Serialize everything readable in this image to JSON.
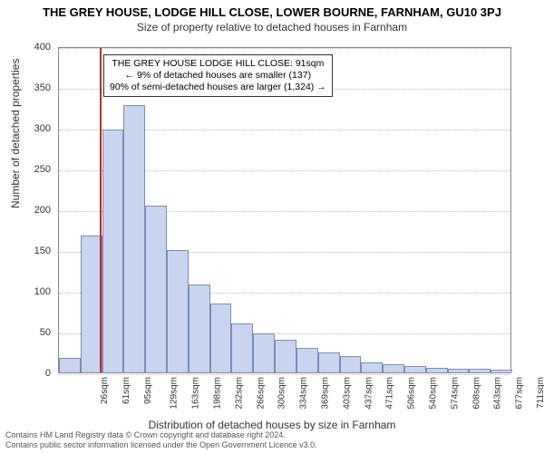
{
  "title_main": "THE GREY HOUSE, LODGE HILL CLOSE, LOWER BOURNE, FARNHAM, GU10 3PJ",
  "title_sub": "Size of property relative to detached houses in Farnham",
  "ylabel": "Number of detached properties",
  "xlabel": "Distribution of detached houses by size in Farnham",
  "chart": {
    "type": "histogram",
    "ylim": [
      0,
      400
    ],
    "ytick_step": 50,
    "yticks": [
      0,
      50,
      100,
      150,
      200,
      250,
      300,
      350,
      400
    ],
    "categories": [
      "26sqm",
      "61sqm",
      "95sqm",
      "129sqm",
      "163sqm",
      "198sqm",
      "232sqm",
      "266sqm",
      "300sqm",
      "334sqm",
      "369sqm",
      "403sqm",
      "437sqm",
      "471sqm",
      "506sqm",
      "540sqm",
      "574sqm",
      "608sqm",
      "643sqm",
      "677sqm",
      "711sqm"
    ],
    "values": [
      18,
      168,
      298,
      328,
      205,
      150,
      108,
      85,
      60,
      48,
      40,
      30,
      25,
      20,
      12,
      10,
      8,
      6,
      5,
      4,
      3
    ],
    "bar_fill": "#c9d5ef",
    "bar_stroke": "#7a8db8",
    "grid_color": "#bbbbbb",
    "axis_color": "#888888",
    "background_color": "#ffffff",
    "bar_gap": 0,
    "label_fontsize": 11,
    "tick_fontsize": 10
  },
  "marker": {
    "position_index": 1.9,
    "color": "#c62828"
  },
  "annotation": {
    "line1": "THE GREY HOUSE LODGE HILL CLOSE: 91sqm",
    "line2": "← 9% of detached houses are smaller (137)",
    "line3": "90% of semi-detached houses are larger (1,324) →"
  },
  "footer": {
    "line1": "Contains HM Land Registry data © Crown copyright and database right 2024.",
    "line2": "Contains public sector information licensed under the Open Government Licence v3.0."
  }
}
